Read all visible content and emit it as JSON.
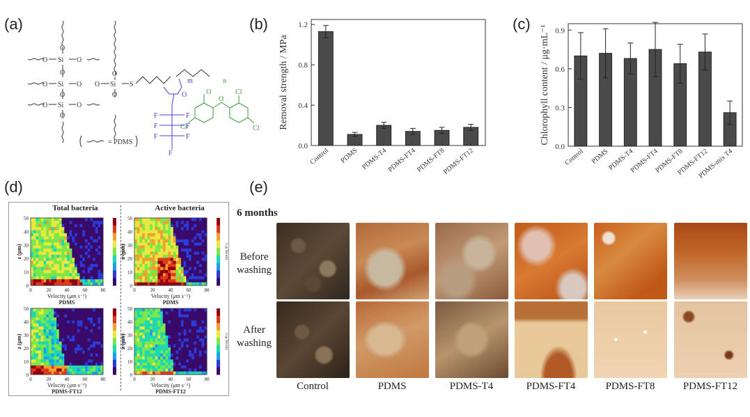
{
  "panels": {
    "a": {
      "label": "(a)",
      "pdms_legend": "= PDMS",
      "atoms": {
        "si": "Si",
        "o": "O",
        "s": "S",
        "f": "F",
        "cl": "Cl",
        "m": "m",
        "n": "n"
      }
    },
    "b": {
      "label": "(b)"
    },
    "c": {
      "label": "(c)"
    },
    "d": {
      "label": "(d)",
      "title_total": "Total bacteria",
      "title_active": "Active bacteria",
      "xlabel": "Velocity (μm s⁻¹)",
      "ylabel": "z (μm)",
      "cbar_label": "Log Density",
      "sample_top": "PDMS",
      "sample_bottom": "PDMS-FT12",
      "xticks": [
        "0",
        "20",
        "40",
        "60",
        "80"
      ],
      "yticks": [
        "0",
        "10",
        "20",
        "30",
        "40",
        "50"
      ]
    },
    "e": {
      "label": "(e)",
      "time": "6 months",
      "row_before": "Before washing",
      "row_after": "After washing",
      "samples": [
        "Control",
        "PDMS",
        "PDMS-T4",
        "PDMS-FT4",
        "PDMS-FT8",
        "PDMS-FT12"
      ]
    }
  },
  "chart_data": [
    {
      "type": "bar",
      "title": "",
      "ylabel": "Removal strength / MPa",
      "categories": [
        "Control",
        "PDMS",
        "PDMS-T4",
        "PDMS-FT4",
        "PDMS-FT8",
        "PDMS-FT12"
      ],
      "values": [
        1.13,
        0.11,
        0.2,
        0.14,
        0.15,
        0.18
      ],
      "errors": [
        0.06,
        0.02,
        0.03,
        0.03,
        0.03,
        0.03
      ],
      "ylim": [
        0,
        1.25
      ],
      "yticks": [
        "0.0",
        "0.4",
        "0.8",
        "1.2"
      ],
      "ytick_values": [
        0,
        0.4,
        0.8,
        1.2
      ]
    },
    {
      "type": "bar",
      "title": "",
      "ylabel": "Chlorophyll content / μg·mL⁻¹",
      "categories": [
        "Control",
        "PDMS",
        "PDMS-T4",
        "PDMS-FT4",
        "PDMS-FT8",
        "PDMS-FT12",
        "PDMS-mix T4"
      ],
      "values": [
        0.7,
        0.72,
        0.68,
        0.75,
        0.64,
        0.73,
        0.26
      ],
      "errors": [
        0.18,
        0.19,
        0.12,
        0.21,
        0.15,
        0.14,
        0.09
      ],
      "ylim": [
        0,
        0.95
      ],
      "yticks": [
        "0.0",
        "0.3",
        "0.6",
        "0.9"
      ],
      "ytick_values": [
        0,
        0.3,
        0.6,
        0.9
      ]
    }
  ],
  "colors": {
    "bar": "#4a4a4a",
    "blue": "#4a3fd4",
    "green": "#3c9a3c",
    "text": "#333333"
  }
}
